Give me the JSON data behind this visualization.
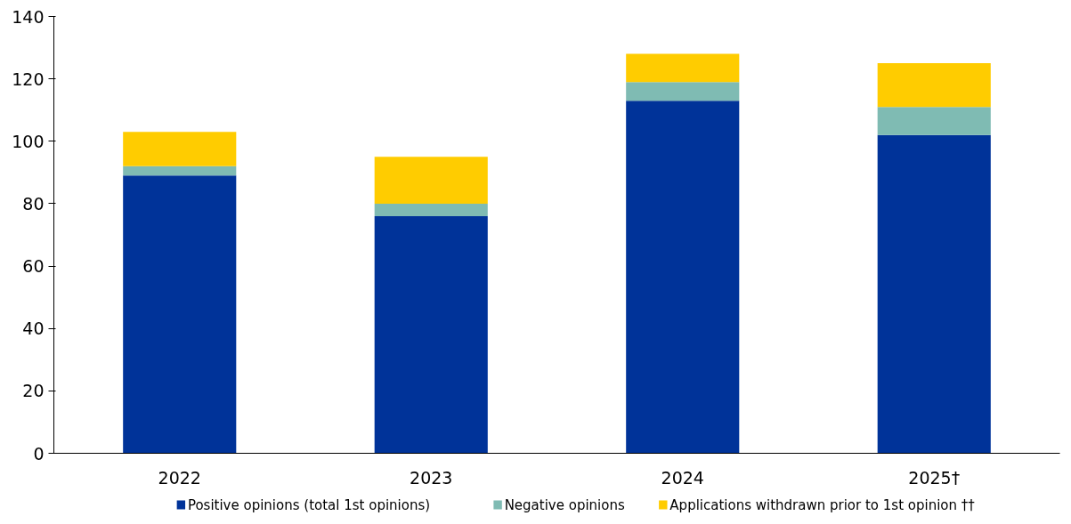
{
  "chart_data": {
    "type": "bar",
    "stacked": true,
    "categories": [
      "2022",
      "2023",
      "2024",
      "2025†"
    ],
    "series": [
      {
        "name": "Positive opinions (total 1st opinions)",
        "color": "#003399",
        "values": [
          89,
          76,
          113,
          102
        ]
      },
      {
        "name": "Negative opinions",
        "color": "#7fbbb3",
        "values": [
          3,
          4,
          6,
          9
        ]
      },
      {
        "name": "Applications withdrawn prior to 1st opinion ††",
        "color": "#ffcc00",
        "values": [
          11,
          15,
          9,
          14
        ]
      }
    ],
    "ylim": [
      0,
      140
    ],
    "yticks": [
      0,
      20,
      40,
      60,
      80,
      100,
      120,
      140
    ],
    "grid": false,
    "legend": "bottom"
  }
}
